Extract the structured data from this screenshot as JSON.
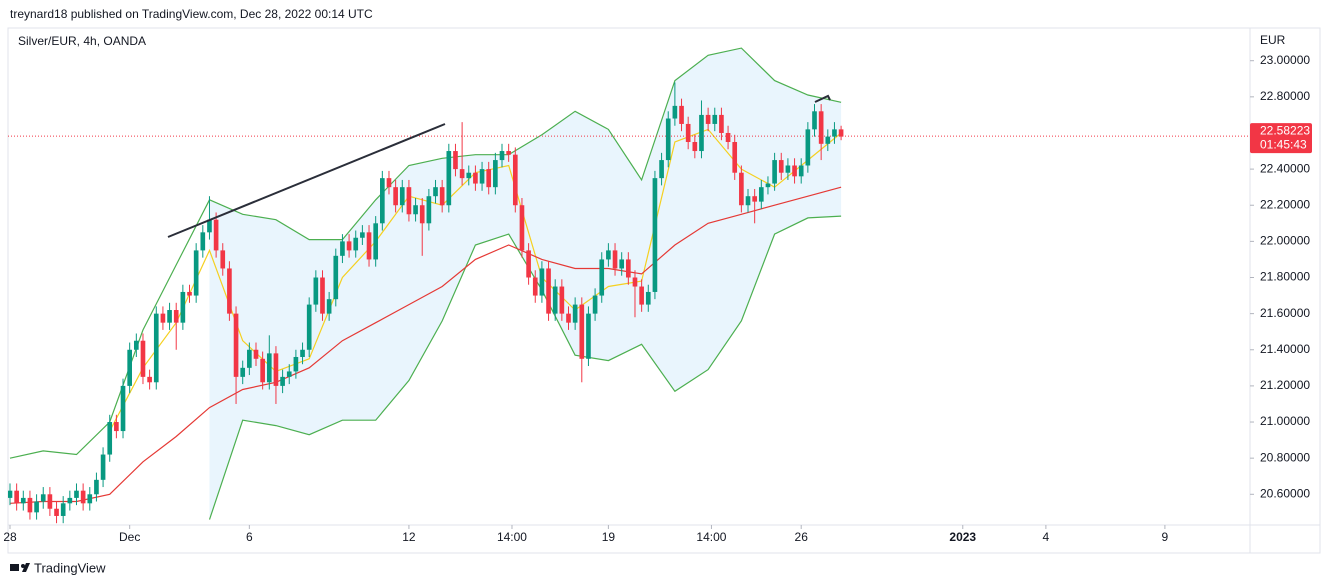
{
  "header": "treynard18 published on TradingView.com, Dec 28, 2022 00:14 UTC",
  "footer": "TradingView",
  "chart_data": {
    "type": "candlestick",
    "title": "Silver/EUR, 4h, OANDA",
    "currency": "EUR",
    "up_color": "#089981",
    "down_color": "#f23645",
    "open": [
      20.58,
      20.62,
      20.55,
      20.58,
      20.5,
      20.56,
      20.6,
      20.52,
      20.48,
      20.55,
      20.58,
      20.62,
      20.55,
      20.6,
      20.68,
      20.82,
      21.0,
      20.95,
      21.2,
      21.4,
      21.45,
      21.25,
      21.22,
      21.6,
      21.55,
      21.62,
      21.55,
      21.72,
      21.7,
      21.95,
      22.05,
      22.12,
      21.95,
      21.85,
      21.6,
      21.25,
      21.3,
      21.4,
      21.35,
      21.22,
      21.38,
      21.2,
      21.25,
      21.28,
      21.36,
      21.4,
      21.65,
      21.8,
      21.6,
      21.68,
      21.92,
      22.0,
      21.95,
      22.02,
      22.05,
      21.9,
      22.1,
      22.35,
      22.3,
      22.2,
      22.3,
      22.15,
      22.2,
      22.1,
      22.25,
      22.3,
      22.2,
      22.5,
      22.4,
      22.35,
      22.38,
      22.32,
      22.4,
      22.3,
      22.45,
      22.5,
      22.48,
      22.2,
      21.95,
      21.8,
      21.7,
      21.85,
      21.6,
      21.75,
      21.6,
      21.55,
      21.65,
      21.35,
      21.6,
      21.7,
      21.9,
      21.95,
      21.85,
      21.9,
      21.8,
      21.75,
      21.65,
      21.72,
      22.35,
      22.45,
      22.68,
      22.75,
      22.65,
      22.55,
      22.5,
      22.7,
      22.65,
      22.7,
      22.6,
      22.55,
      22.38,
      22.2,
      22.25,
      22.22,
      22.3,
      22.32,
      22.45,
      22.38,
      22.42,
      22.36,
      22.42,
      22.62,
      22.72,
      22.54,
      22.58,
      22.62
    ],
    "high": [
      20.66,
      20.66,
      20.62,
      20.62,
      20.6,
      20.64,
      20.64,
      20.56,
      20.59,
      20.62,
      20.66,
      20.66,
      20.64,
      20.72,
      20.86,
      21.04,
      21.04,
      21.24,
      21.44,
      21.49,
      21.49,
      21.29,
      21.64,
      21.64,
      21.66,
      21.66,
      21.76,
      21.76,
      21.99,
      22.09,
      22.25,
      22.16,
      21.99,
      21.89,
      21.64,
      21.34,
      21.44,
      21.44,
      21.39,
      21.48,
      21.42,
      21.29,
      21.32,
      21.4,
      21.44,
      21.69,
      21.84,
      21.84,
      21.72,
      21.96,
      22.04,
      22.04,
      22.06,
      22.09,
      22.09,
      22.14,
      22.39,
      22.39,
      22.34,
      22.34,
      22.34,
      22.24,
      22.24,
      22.29,
      22.34,
      22.34,
      22.54,
      22.54,
      22.66,
      22.42,
      22.42,
      22.44,
      22.44,
      22.49,
      22.54,
      22.54,
      22.52,
      22.24,
      21.99,
      21.84,
      21.89,
      21.89,
      21.79,
      21.79,
      21.64,
      21.69,
      21.69,
      21.64,
      21.74,
      21.94,
      21.99,
      21.99,
      21.94,
      21.94,
      21.84,
      21.79,
      21.76,
      22.39,
      22.49,
      22.72,
      22.88,
      22.79,
      22.69,
      22.59,
      22.78,
      22.74,
      22.74,
      22.74,
      22.64,
      22.59,
      22.42,
      22.29,
      22.29,
      22.34,
      22.36,
      22.49,
      22.49,
      22.46,
      22.46,
      22.46,
      22.66,
      22.76,
      22.76,
      22.62,
      22.66,
      22.64
    ],
    "low": [
      20.54,
      20.51,
      20.51,
      20.46,
      20.46,
      20.52,
      20.48,
      20.44,
      20.44,
      20.51,
      20.54,
      20.51,
      20.51,
      20.56,
      20.64,
      20.78,
      20.91,
      20.91,
      21.16,
      21.36,
      21.21,
      21.18,
      21.18,
      21.51,
      21.51,
      21.4,
      21.51,
      21.66,
      21.66,
      21.91,
      22.01,
      21.91,
      21.81,
      21.56,
      21.1,
      21.21,
      21.26,
      21.31,
      21.18,
      21.18,
      21.1,
      21.16,
      21.21,
      21.24,
      21.32,
      21.36,
      21.61,
      21.56,
      21.56,
      21.64,
      21.88,
      21.91,
      21.91,
      21.98,
      21.86,
      21.86,
      22.06,
      22.26,
      22.16,
      22.16,
      22.11,
      22.11,
      21.92,
      22.06,
      22.21,
      22.16,
      22.16,
      22.36,
      22.31,
      22.31,
      22.28,
      22.28,
      22.26,
      22.26,
      22.41,
      22.44,
      22.16,
      21.91,
      21.76,
      21.66,
      21.66,
      21.56,
      21.56,
      21.56,
      21.51,
      21.51,
      21.22,
      21.31,
      21.56,
      21.66,
      21.86,
      21.81,
      21.81,
      21.76,
      21.58,
      21.61,
      21.61,
      21.68,
      22.31,
      22.41,
      22.64,
      22.61,
      22.51,
      22.46,
      22.46,
      22.61,
      22.61,
      22.56,
      22.51,
      22.34,
      22.16,
      22.16,
      22.1,
      22.18,
      22.26,
      22.28,
      22.34,
      22.34,
      22.32,
      22.32,
      22.38,
      22.58,
      22.45,
      22.5,
      22.54,
      22.56
    ],
    "close": [
      20.62,
      20.55,
      20.58,
      20.5,
      20.56,
      20.6,
      20.52,
      20.48,
      20.55,
      20.58,
      20.62,
      20.55,
      20.6,
      20.68,
      20.82,
      21.0,
      20.95,
      21.2,
      21.4,
      21.45,
      21.25,
      21.22,
      21.6,
      21.55,
      21.62,
      21.55,
      21.72,
      21.7,
      21.95,
      22.05,
      22.12,
      21.95,
      21.85,
      21.6,
      21.25,
      21.3,
      21.4,
      21.35,
      21.22,
      21.38,
      21.2,
      21.25,
      21.28,
      21.36,
      21.4,
      21.65,
      21.8,
      21.6,
      21.68,
      21.92,
      22.0,
      21.95,
      22.02,
      22.05,
      21.9,
      22.1,
      22.35,
      22.3,
      22.2,
      22.3,
      22.15,
      22.2,
      22.1,
      22.25,
      22.3,
      22.2,
      22.5,
      22.4,
      22.35,
      22.38,
      22.32,
      22.4,
      22.3,
      22.45,
      22.5,
      22.48,
      22.2,
      21.95,
      21.8,
      21.7,
      21.85,
      21.6,
      21.75,
      21.6,
      21.55,
      21.65,
      21.35,
      21.6,
      21.7,
      21.9,
      21.95,
      21.85,
      21.9,
      21.8,
      21.75,
      21.65,
      21.72,
      22.35,
      22.45,
      22.68,
      22.75,
      22.65,
      22.55,
      22.5,
      22.7,
      22.65,
      22.7,
      22.6,
      22.55,
      22.38,
      22.2,
      22.25,
      22.22,
      22.3,
      22.32,
      22.45,
      22.38,
      22.42,
      22.36,
      22.42,
      22.62,
      22.72,
      22.54,
      22.58,
      22.62,
      22.58
    ],
    "indicator_x": [
      0,
      5,
      10,
      15,
      20,
      25,
      30,
      35,
      40,
      45,
      50,
      55,
      60,
      65,
      70,
      75,
      80,
      85,
      90,
      95,
      100,
      105,
      110,
      115,
      120,
      125
    ],
    "indicators": [
      {
        "color": "#4caf50",
        "values": [
          20.8,
          20.84,
          20.82,
          21.0,
          21.51,
          21.87,
          22.23,
          22.15,
          22.12,
          22.01,
          22.01,
          22.23,
          22.42,
          22.46,
          22.48,
          22.48,
          22.59,
          22.72,
          22.62,
          22.34,
          22.89,
          23.03,
          23.07,
          22.89,
          22.81,
          22.77
        ]
      },
      {
        "color": "#4caf50",
        "values": [
          null,
          null,
          null,
          null,
          null,
          null,
          20.46,
          21.01,
          20.98,
          20.93,
          21.01,
          21.01,
          21.23,
          21.56,
          21.98,
          22.04,
          21.73,
          21.37,
          21.34,
          21.43,
          21.17,
          21.29,
          21.56,
          22.04,
          22.13,
          22.14
        ]
      },
      {
        "color": "#f5d020",
        "values": [
          null,
          null,
          null,
          20.95,
          21.3,
          21.55,
          21.95,
          21.45,
          21.28,
          21.35,
          21.8,
          22.0,
          22.25,
          22.2,
          22.38,
          22.42,
          21.8,
          21.62,
          21.75,
          21.78,
          22.55,
          22.62,
          22.4,
          22.3,
          22.45,
          22.6
        ]
      },
      {
        "color": "#e53935",
        "values": [
          20.55,
          20.56,
          20.56,
          20.6,
          20.78,
          20.92,
          21.08,
          21.18,
          21.22,
          21.3,
          21.45,
          21.55,
          21.65,
          21.75,
          21.9,
          21.98,
          21.9,
          21.85,
          21.85,
          21.82,
          21.98,
          22.1,
          22.15,
          22.2,
          22.25,
          22.3
        ]
      }
    ],
    "band_fill": "#e3f2fd",
    "last_price": 22.58223,
    "countdown": "01:45:43",
    "xlim": [
      -0.3,
      186.5
    ],
    "xticks": [
      {
        "value": 0,
        "label": "28"
      },
      {
        "value": 18,
        "label": "Dec"
      },
      {
        "value": 36,
        "label": "6"
      },
      {
        "value": 60,
        "label": "12"
      },
      {
        "value": 75.5,
        "label": "14:00"
      },
      {
        "value": 90,
        "label": "19"
      },
      {
        "value": 105.5,
        "label": "14:00"
      },
      {
        "value": 119,
        "label": "26"
      },
      {
        "value": 143.3,
        "label": "2023"
      },
      {
        "value": 155.8,
        "label": "4"
      },
      {
        "value": 173.7,
        "label": "9"
      }
    ],
    "ylim": [
      20.43,
      23.17
    ],
    "yticks": [
      {
        "value": 20.6,
        "label": "20.60000"
      },
      {
        "value": 20.8,
        "label": "20.80000"
      },
      {
        "value": 21.0,
        "label": "21.00000"
      },
      {
        "value": 21.2,
        "label": "21.20000"
      },
      {
        "value": 21.4,
        "label": "21.40000"
      },
      {
        "value": 21.6,
        "label": "21.60000"
      },
      {
        "value": 21.8,
        "label": "21.80000"
      },
      {
        "value": 22.0,
        "label": "22.00000"
      },
      {
        "value": 22.2,
        "label": "22.20000"
      },
      {
        "value": 22.4,
        "label": "22.40000"
      },
      {
        "value": 22.6,
        "label": "22.60000"
      },
      {
        "value": 22.8,
        "label": "22.80000"
      },
      {
        "value": 23.0,
        "label": "23.00000"
      }
    ],
    "grid": false
  }
}
